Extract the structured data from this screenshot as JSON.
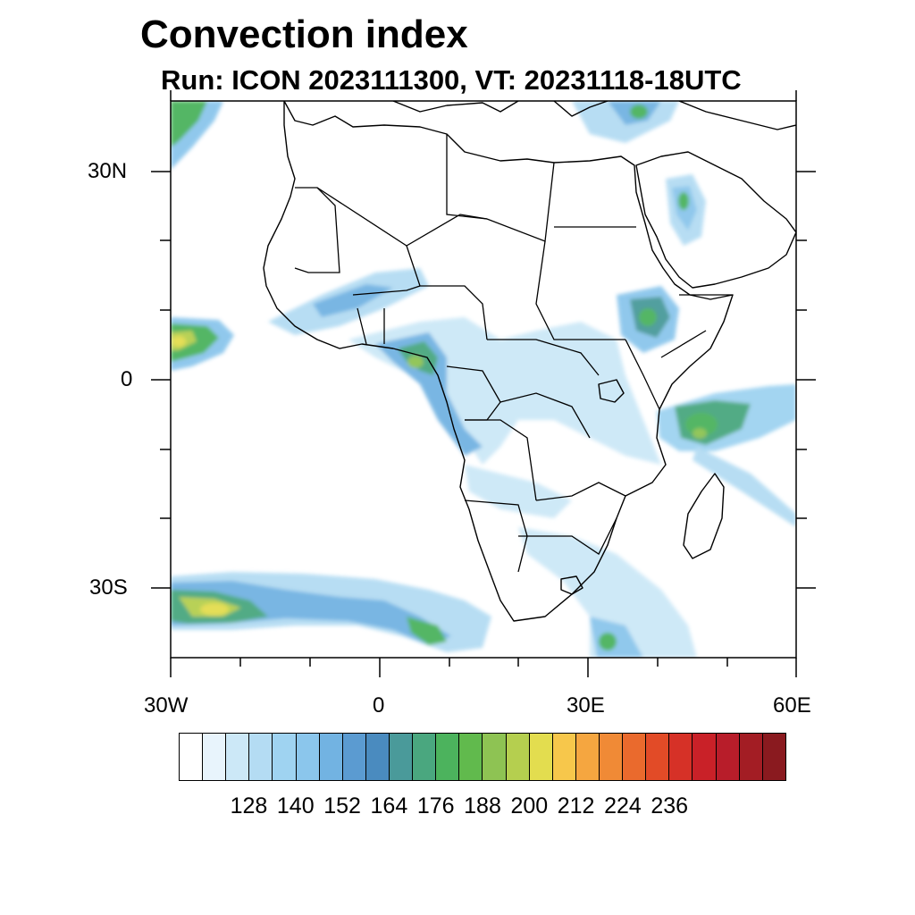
{
  "title": "Convection index",
  "subtitle": "Run: ICON 2023111300,  VT: 20231118-18UTC",
  "axes": {
    "lon_labels": [
      "30W",
      "0",
      "30E",
      "60E"
    ],
    "lat_labels": [
      "30N",
      "0",
      "30S"
    ]
  },
  "map_features": {
    "land_outline": "africa-coastline",
    "country_borders": "african-countries",
    "field": "convection-index"
  },
  "colorbar": {
    "colors": [
      "#ffffff",
      "#e8f4fc",
      "#cce8f7",
      "#b4dcf3",
      "#9fd3f1",
      "#8bc6ec",
      "#72b3e2",
      "#5b9bd1",
      "#4a8bbf",
      "#4a9a9a",
      "#4aa77f",
      "#4cb35d",
      "#61ba4d",
      "#8ec353",
      "#b5cf4f",
      "#e3dd4f",
      "#f7c74b",
      "#f5a640",
      "#f08a36",
      "#ea6a2d",
      "#e24b27",
      "#d63127",
      "#c92128",
      "#b81d2a",
      "#a31d24",
      "#8a1a1f"
    ],
    "labels": [
      "128",
      "140",
      "152",
      "164",
      "176",
      "188",
      "200",
      "212",
      "224",
      "236"
    ]
  }
}
